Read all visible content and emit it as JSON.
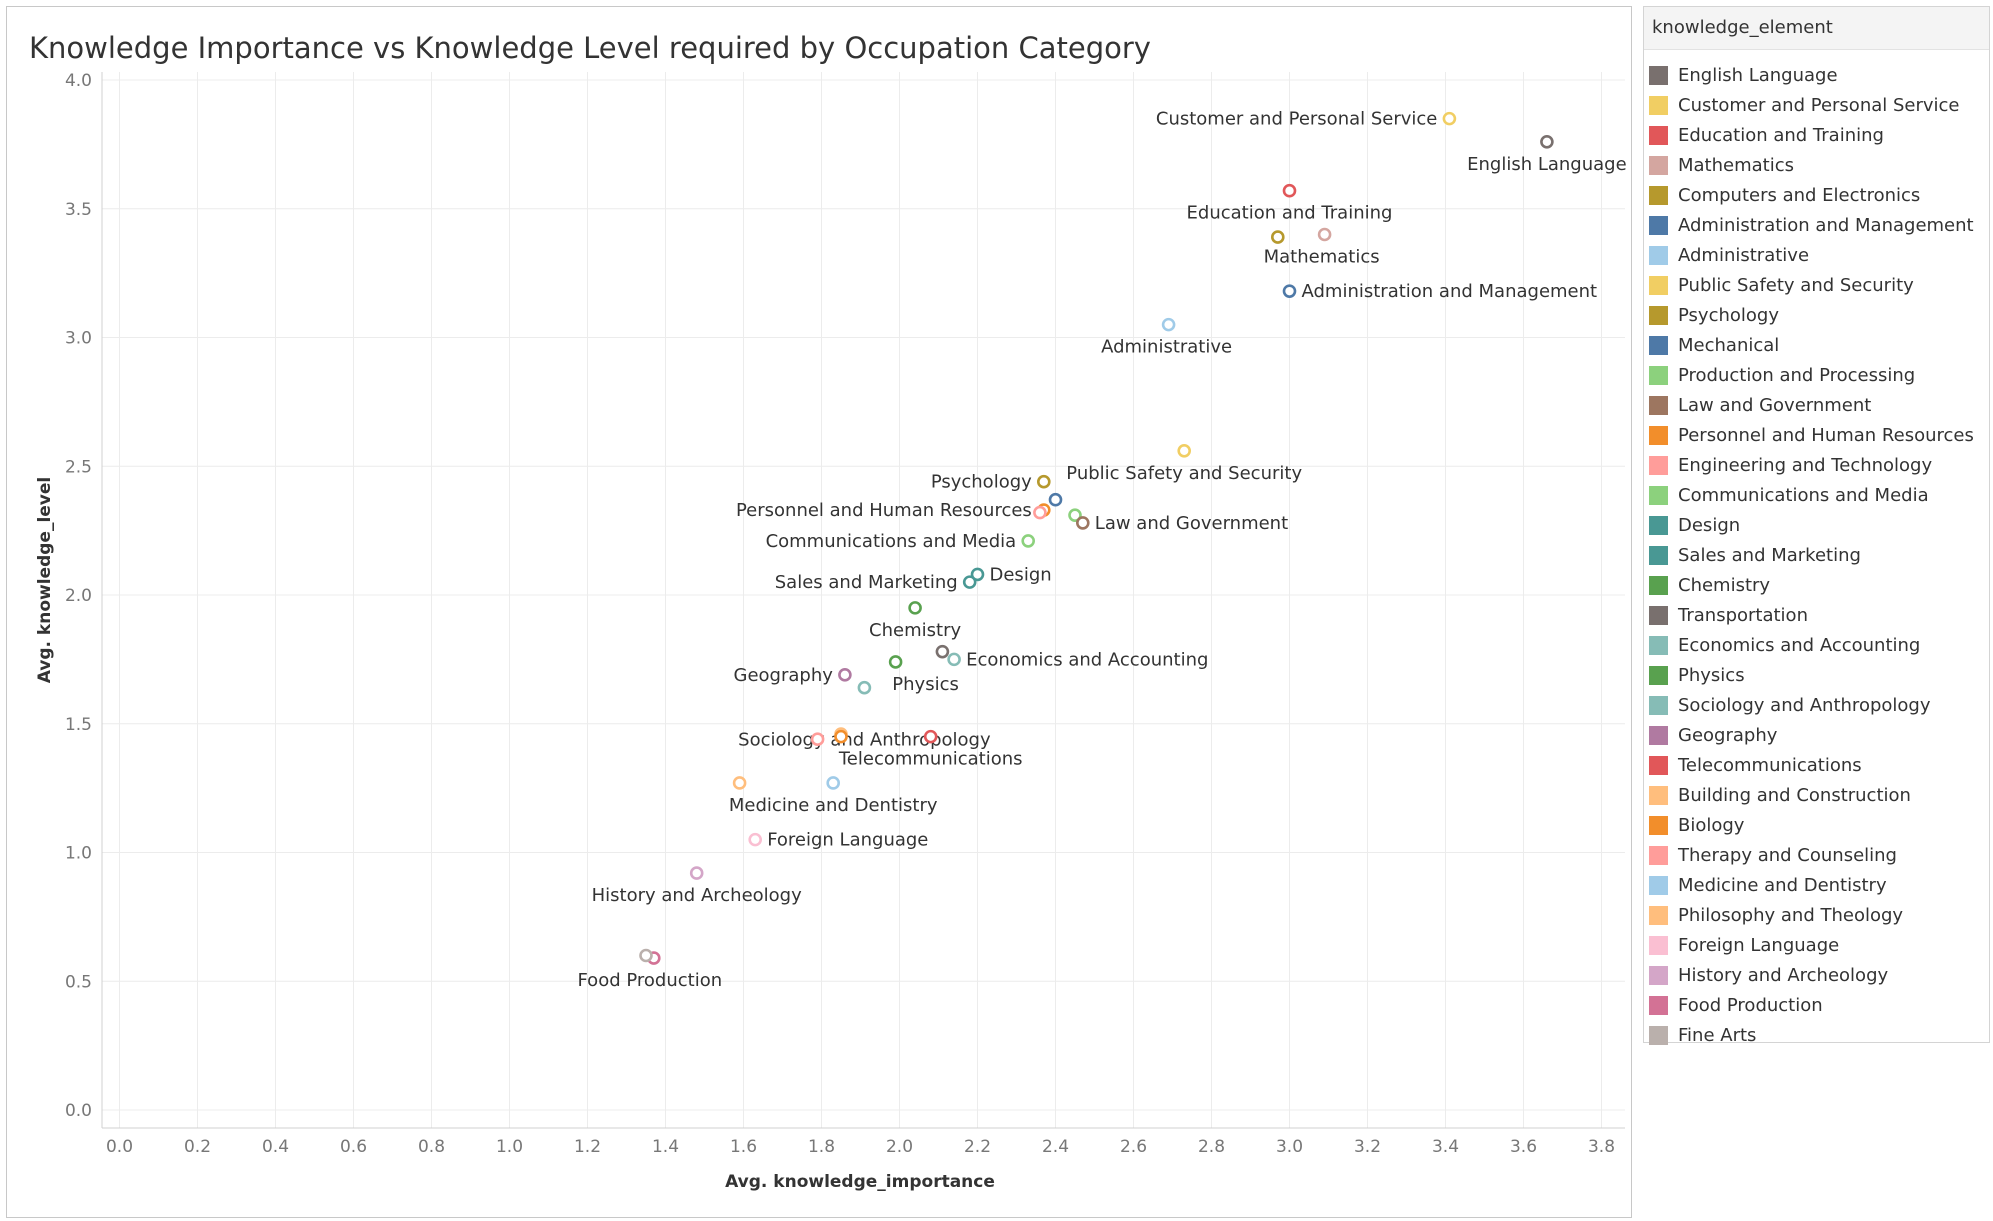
{
  "chart_data": {
    "type": "scatter",
    "title": "Knowledge Importance vs Knowledge Level required by Occupation Category",
    "xlabel": "Avg. knowledge_importance",
    "ylabel": "Avg. knowledge_level",
    "xlim": [
      0.0,
      3.85
    ],
    "ylim": [
      0.0,
      4.0
    ],
    "x_ticks": [
      "0.0",
      "0.2",
      "0.4",
      "0.6",
      "0.8",
      "1.0",
      "1.2",
      "1.4",
      "1.6",
      "1.8",
      "2.0",
      "2.2",
      "2.4",
      "2.6",
      "2.8",
      "3.0",
      "3.2",
      "3.4",
      "3.6",
      "3.8"
    ],
    "y_ticks": [
      "0.0",
      "0.5",
      "1.0",
      "1.5",
      "2.0",
      "2.5",
      "3.0",
      "3.5",
      "4.0"
    ],
    "grid": true,
    "legend_title": "knowledge_element",
    "legend_position": "right",
    "points": [
      {
        "name": "English Language",
        "x": 3.66,
        "y": 3.76,
        "color": "#79706e",
        "label": "English Language"
      },
      {
        "name": "Customer and Personal Service",
        "x": 3.41,
        "y": 3.85,
        "color": "#f1ce63",
        "label": "Customer and Personal Service"
      },
      {
        "name": "Education and Training",
        "x": 3.0,
        "y": 3.57,
        "color": "#e15759",
        "label": "Education and Training"
      },
      {
        "name": "Mathematics",
        "x": 3.09,
        "y": 3.4,
        "color": "#d4a6a0",
        "label": "Mathematics"
      },
      {
        "name": "Computers and Electronics",
        "x": 2.97,
        "y": 3.39,
        "color": "#b6992d",
        "label": ""
      },
      {
        "name": "Administration and Management",
        "x": 3.0,
        "y": 3.18,
        "color": "#4e79a7",
        "label": "Administration and Management"
      },
      {
        "name": "Administrative",
        "x": 2.69,
        "y": 3.05,
        "color": "#a0cbe8",
        "label": "Administrative"
      },
      {
        "name": "Public Safety and Security",
        "x": 2.73,
        "y": 2.56,
        "color": "#f1ce63",
        "label": "Public Safety and Security"
      },
      {
        "name": "Psychology",
        "x": 2.37,
        "y": 2.44,
        "color": "#b6992d",
        "label": "Psychology"
      },
      {
        "name": "Mechanical",
        "x": 2.4,
        "y": 2.37,
        "color": "#4e79a7",
        "label": ""
      },
      {
        "name": "Production and Processing",
        "x": 2.45,
        "y": 2.31,
        "color": "#8cd17d",
        "label": ""
      },
      {
        "name": "Law and Government",
        "x": 2.47,
        "y": 2.28,
        "color": "#9d7660",
        "label": "Law and Government"
      },
      {
        "name": "Personnel and Human Resources",
        "x": 2.37,
        "y": 2.33,
        "color": "#f28e2b",
        "label": "Personnel and Human Resources"
      },
      {
        "name": "Engineering and Technology",
        "x": 2.36,
        "y": 2.32,
        "color": "#ff9d9a",
        "label": ""
      },
      {
        "name": "Communications and Media",
        "x": 2.33,
        "y": 2.21,
        "color": "#8cd17d",
        "label": "Communications and Media"
      },
      {
        "name": "Design",
        "x": 2.2,
        "y": 2.08,
        "color": "#499894",
        "label": "Design"
      },
      {
        "name": "Sales and Marketing",
        "x": 2.18,
        "y": 2.05,
        "color": "#499894",
        "label": "Sales and Marketing"
      },
      {
        "name": "Chemistry",
        "x": 2.04,
        "y": 1.95,
        "color": "#59a14f",
        "label": "Chemistry"
      },
      {
        "name": "Transportation",
        "x": 2.11,
        "y": 1.78,
        "color": "#79706e",
        "label": ""
      },
      {
        "name": "Economics and Accounting",
        "x": 2.14,
        "y": 1.75,
        "color": "#86bcb6",
        "label": "Economics and Accounting"
      },
      {
        "name": "Physics",
        "x": 1.99,
        "y": 1.74,
        "color": "#59a14f",
        "label": "Physics"
      },
      {
        "name": "Sociology and Anthropology",
        "x": 1.91,
        "y": 1.64,
        "color": "#86bcb6",
        "label": "Sociology and Anthropology"
      },
      {
        "name": "Geography",
        "x": 1.86,
        "y": 1.69,
        "color": "#b07aa1",
        "label": "Geography"
      },
      {
        "name": "Telecommunications",
        "x": 2.08,
        "y": 1.45,
        "color": "#e15759",
        "label": "Telecommunications"
      },
      {
        "name": "Building and Construction",
        "x": 1.85,
        "y": 1.46,
        "color": "#ffbe7d",
        "label": ""
      },
      {
        "name": "Biology",
        "x": 1.85,
        "y": 1.45,
        "color": "#f28e2b",
        "label": ""
      },
      {
        "name": "Therapy and Counseling",
        "x": 1.79,
        "y": 1.44,
        "color": "#ff9d9a",
        "label": ""
      },
      {
        "name": "Medicine and Dentistry",
        "x": 1.83,
        "y": 1.27,
        "color": "#a0cbe8",
        "label": "Medicine and Dentistry"
      },
      {
        "name": "Philosophy and Theology",
        "x": 1.59,
        "y": 1.27,
        "color": "#ffbe7d",
        "label": ""
      },
      {
        "name": "Foreign Language",
        "x": 1.63,
        "y": 1.05,
        "color": "#fabfd2",
        "label": "Foreign Language"
      },
      {
        "name": "History and Archeology",
        "x": 1.48,
        "y": 0.92,
        "color": "#d4a6c8",
        "label": "History and Archeology"
      },
      {
        "name": "Food Production",
        "x": 1.37,
        "y": 0.59,
        "color": "#d37295",
        "label": "Food Production"
      },
      {
        "name": "Fine Arts",
        "x": 1.35,
        "y": 0.6,
        "color": "#bab0ac",
        "label": ""
      }
    ],
    "legend": [
      {
        "label": "English Language",
        "color": "#79706e"
      },
      {
        "label": "Customer and Personal Service",
        "color": "#f1ce63"
      },
      {
        "label": "Education and Training",
        "color": "#e15759"
      },
      {
        "label": "Mathematics",
        "color": "#d4a6a0"
      },
      {
        "label": "Computers and Electronics",
        "color": "#b6992d"
      },
      {
        "label": "Administration and Management",
        "color": "#4e79a7"
      },
      {
        "label": "Administrative",
        "color": "#a0cbe8"
      },
      {
        "label": "Public Safety and Security",
        "color": "#f1ce63"
      },
      {
        "label": "Psychology",
        "color": "#b6992d"
      },
      {
        "label": "Mechanical",
        "color": "#4e79a7"
      },
      {
        "label": "Production and Processing",
        "color": "#8cd17d"
      },
      {
        "label": "Law and Government",
        "color": "#9d7660"
      },
      {
        "label": "Personnel and Human Resources",
        "color": "#f28e2b"
      },
      {
        "label": "Engineering and Technology",
        "color": "#ff9d9a"
      },
      {
        "label": "Communications and Media",
        "color": "#8cd17d"
      },
      {
        "label": "Design",
        "color": "#499894"
      },
      {
        "label": "Sales and Marketing",
        "color": "#499894"
      },
      {
        "label": "Chemistry",
        "color": "#59a14f"
      },
      {
        "label": "Transportation",
        "color": "#79706e"
      },
      {
        "label": "Economics and Accounting",
        "color": "#86bcb6"
      },
      {
        "label": "Physics",
        "color": "#59a14f"
      },
      {
        "label": "Sociology and Anthropology",
        "color": "#86bcb6"
      },
      {
        "label": "Geography",
        "color": "#b07aa1"
      },
      {
        "label": "Telecommunications",
        "color": "#e15759"
      },
      {
        "label": "Building and Construction",
        "color": "#ffbe7d"
      },
      {
        "label": "Biology",
        "color": "#f28e2b"
      },
      {
        "label": "Therapy and Counseling",
        "color": "#ff9d9a"
      },
      {
        "label": "Medicine and Dentistry",
        "color": "#a0cbe8"
      },
      {
        "label": "Philosophy and Theology",
        "color": "#ffbe7d"
      },
      {
        "label": "Foreign Language",
        "color": "#fabfd2"
      },
      {
        "label": "History and Archeology",
        "color": "#d4a6c8"
      },
      {
        "label": "Food Production",
        "color": "#d37295"
      },
      {
        "label": "Fine Arts",
        "color": "#bab0ac"
      }
    ]
  }
}
